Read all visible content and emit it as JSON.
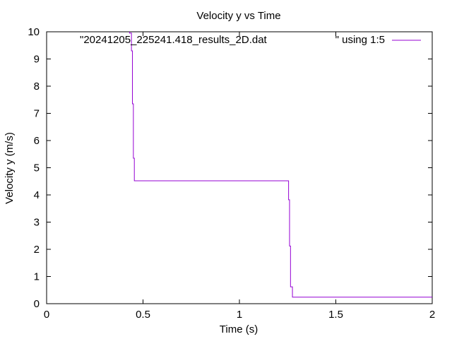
{
  "chart_data": {
    "type": "line",
    "title": "Velocity y vs Time",
    "xlabel": "Time (s)",
    "ylabel": "Velocity y (m/s)",
    "xlim": [
      0,
      2
    ],
    "ylim": [
      0,
      10
    ],
    "x_ticks": [
      0,
      0.5,
      1,
      1.5,
      2
    ],
    "x_tick_labels": [
      "0",
      "0.5",
      "1",
      "1.5",
      "2"
    ],
    "y_ticks": [
      0,
      1,
      2,
      3,
      4,
      5,
      6,
      7,
      8,
      9,
      10
    ],
    "y_tick_labels": [
      "0",
      "1",
      "2",
      "3",
      "4",
      "5",
      "6",
      "7",
      "8",
      "9",
      "10"
    ],
    "grid": false,
    "legend_position": "top-right",
    "line_style": "steps",
    "series": [
      {
        "name": "\"20241205_225241.418_results_2D.dat",
        "name_suffix": "\" using 1:5",
        "color": "#9400d3",
        "x": [
          0.43,
          0.43,
          0.44,
          0.44,
          0.445,
          0.445,
          0.45,
          0.45,
          0.455,
          0.455,
          1.25,
          1.25,
          1.255,
          1.255,
          1.26,
          1.26,
          1.265,
          1.265,
          1.275,
          1.275,
          2.0
        ],
        "y": [
          10.0,
          9.95,
          9.95,
          9.3,
          9.3,
          7.35,
          7.35,
          5.35,
          5.35,
          4.52,
          4.52,
          4.52,
          4.52,
          3.82,
          3.82,
          2.12,
          2.12,
          0.62,
          0.62,
          0.24,
          0.24
        ]
      }
    ]
  }
}
